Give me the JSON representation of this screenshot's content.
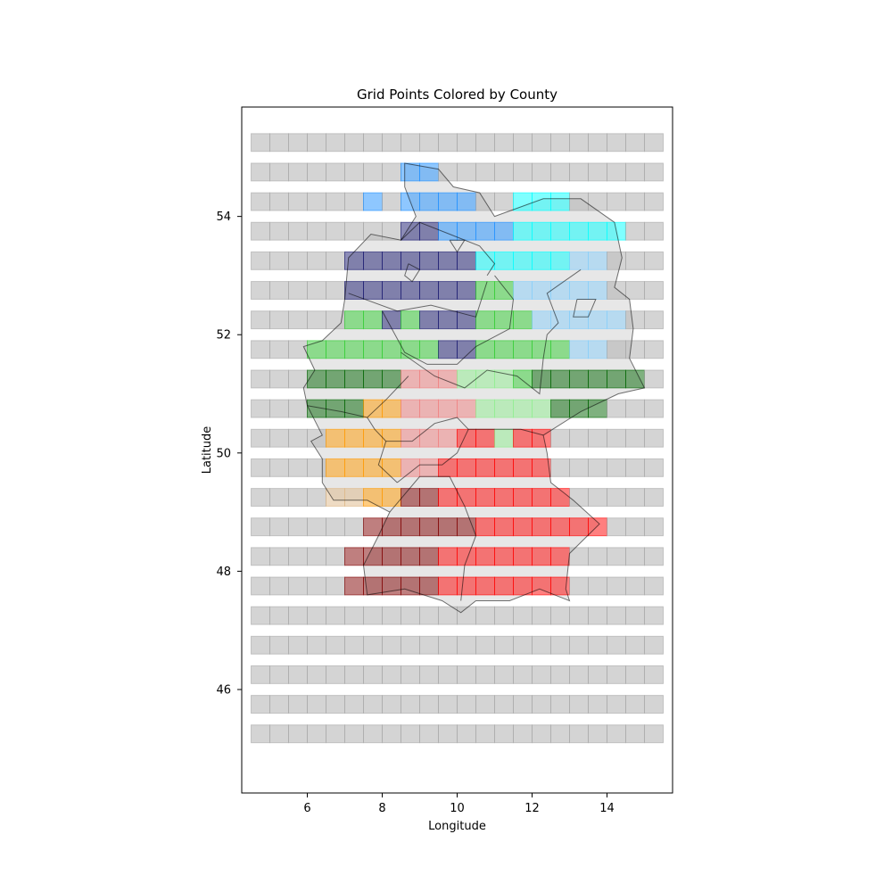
{
  "chart_data": {
    "type": "heatmap",
    "title": "Grid Points Colored by County",
    "xlabel": "Longitude",
    "ylabel": "Latitude",
    "xlim": [
      4.25,
      15.75
    ],
    "ylim": [
      44.25,
      55.85
    ],
    "xticks": [
      6,
      8,
      10,
      12,
      14
    ],
    "yticks": [
      46,
      48,
      50,
      52,
      54
    ],
    "grid": false,
    "cell_width_deg": 0.5,
    "cell_height_deg": 0.3,
    "lons": [
      4.75,
      5.25,
      5.75,
      6.25,
      6.75,
      7.25,
      7.75,
      8.25,
      8.75,
      9.25,
      9.75,
      10.25,
      10.75,
      11.25,
      11.75,
      12.25,
      12.75,
      13.25,
      13.75,
      14.25,
      14.75,
      15.25
    ],
    "lats": [
      45.25,
      45.75,
      46.25,
      46.75,
      47.25,
      47.75,
      48.25,
      48.75,
      49.25,
      49.75,
      50.25,
      50.75,
      51.25,
      51.75,
      52.25,
      52.75,
      53.25,
      53.75,
      54.25,
      54.75,
      55.25
    ],
    "default_color": "#a9a9a9",
    "county_colors": {
      "A": "#1e90ff",
      "B": "#00ffff",
      "C": "#191970",
      "D": "#87cefa",
      "E": "#32cd32",
      "F": "#006400",
      "G": "#90ee90",
      "H": "#f08080",
      "I": "#ff9900",
      "J": "#ff0000",
      "K": "#deb887",
      "L": "#800000"
    },
    "rows": [
      {
        "lat": 55.25,
        "cells": "......................"
      },
      {
        "lat": 54.75,
        "cells": "........AA............"
      },
      {
        "lat": 54.25,
        "cells": "......A.AAAA..BBB....."
      },
      {
        "lat": 53.75,
        "cells": "........CCAAAABBBBBB.."
      },
      {
        "lat": 53.25,
        "cells": ".....CCCCCCCBBBBBDD..."
      },
      {
        "lat": 52.75,
        "cells": ".....CCCCCCCEEDDDDD..."
      },
      {
        "lat": 52.25,
        "cells": ".....EECECCCEEEDDDDD.."
      },
      {
        "lat": 51.75,
        "cells": "...EEEEEEECCEEEEEDD..."
      },
      {
        "lat": 51.25,
        "cells": "...FFFFFHHHGGGEFFFFFF."
      },
      {
        "lat": 50.75,
        "cells": "...FFFIIHHHHGGGGFFF..."
      },
      {
        "lat": 50.25,
        "cells": "....IIIIHHHJJGJJ......"
      },
      {
        "lat": 49.75,
        "cells": "....IIIIHHJJJJJJ......"
      },
      {
        "lat": 49.25,
        "cells": "....KKIILLJJJJJJJ....."
      },
      {
        "lat": 48.75,
        "cells": "......LLLLLLJJJJJJJ..."
      },
      {
        "lat": 48.25,
        "cells": ".....LLLLLJJJJJJJ....."
      },
      {
        "lat": 47.75,
        "cells": ".....LLLLLJJJJJJJ....."
      },
      {
        "lat": 47.25,
        "cells": "......................"
      },
      {
        "lat": 46.75,
        "cells": "......................"
      },
      {
        "lat": 46.25,
        "cells": "......................"
      },
      {
        "lat": 45.75,
        "cells": "......................"
      },
      {
        "lat": 45.25,
        "cells": "......................"
      }
    ],
    "outline": {
      "stroke": "#000000",
      "fill": "#d3d3d3",
      "polygons": [
        {
          "fill": true,
          "points": [
            [
              8.6,
              54.9
            ],
            [
              9.5,
              54.8
            ],
            [
              9.9,
              54.5
            ],
            [
              10.6,
              54.4
            ],
            [
              11.0,
              54.0
            ],
            [
              12.3,
              54.3
            ],
            [
              13.3,
              54.3
            ],
            [
              14.2,
              53.9
            ],
            [
              14.4,
              53.3
            ],
            [
              14.2,
              52.8
            ],
            [
              14.6,
              52.6
            ],
            [
              14.7,
              52.1
            ],
            [
              14.6,
              51.6
            ],
            [
              15.0,
              51.1
            ],
            [
              14.3,
              51.0
            ],
            [
              13.3,
              50.7
            ],
            [
              12.3,
              50.3
            ],
            [
              12.4,
              50.0
            ],
            [
              12.5,
              49.5
            ],
            [
              13.1,
              49.2
            ],
            [
              13.8,
              48.8
            ],
            [
              13.0,
              48.3
            ],
            [
              12.9,
              47.7
            ],
            [
              13.0,
              47.5
            ],
            [
              12.2,
              47.7
            ],
            [
              11.4,
              47.5
            ],
            [
              10.5,
              47.5
            ],
            [
              10.1,
              47.3
            ],
            [
              9.6,
              47.5
            ],
            [
              8.6,
              47.7
            ],
            [
              7.6,
              47.6
            ],
            [
              7.5,
              48.1
            ],
            [
              7.9,
              48.6
            ],
            [
              8.2,
              49.0
            ],
            [
              7.6,
              49.2
            ],
            [
              6.7,
              49.2
            ],
            [
              6.4,
              49.5
            ],
            [
              6.4,
              49.9
            ],
            [
              6.1,
              50.2
            ],
            [
              6.4,
              50.3
            ],
            [
              6.0,
              50.8
            ],
            [
              5.9,
              51.1
            ],
            [
              6.2,
              51.4
            ],
            [
              5.9,
              51.8
            ],
            [
              6.4,
              51.9
            ],
            [
              6.9,
              52.2
            ],
            [
              7.0,
              52.6
            ],
            [
              7.1,
              53.3
            ],
            [
              7.7,
              53.7
            ],
            [
              8.5,
              53.6
            ],
            [
              8.9,
              54.0
            ],
            [
              8.6,
              54.5
            ],
            [
              8.6,
              54.9
            ]
          ]
        },
        {
          "fill": false,
          "points": [
            [
              8.5,
              53.6
            ],
            [
              9.0,
              53.9
            ],
            [
              9.8,
              53.7
            ],
            [
              10.6,
              53.5
            ],
            [
              11.0,
              53.2
            ],
            [
              10.8,
              53.0
            ]
          ]
        },
        {
          "fill": false,
          "points": [
            [
              7.1,
              52.7
            ],
            [
              8.4,
              52.4
            ],
            [
              9.3,
              52.5
            ],
            [
              10.5,
              52.3
            ],
            [
              10.8,
              52.9
            ]
          ]
        },
        {
          "fill": false,
          "points": [
            [
              8.0,
              52.4
            ],
            [
              8.6,
              51.7
            ],
            [
              9.2,
              51.5
            ],
            [
              10.0,
              51.5
            ],
            [
              10.5,
              51.8
            ],
            [
              11.4,
              52.1
            ],
            [
              11.5,
              52.6
            ],
            [
              11.0,
              53.0
            ]
          ]
        },
        {
          "fill": false,
          "points": [
            [
              8.5,
              51.7
            ],
            [
              9.4,
              51.3
            ],
            [
              10.2,
              51.1
            ],
            [
              10.8,
              51.4
            ],
            [
              11.6,
              51.3
            ],
            [
              12.2,
              51.0
            ],
            [
              12.3,
              51.6
            ],
            [
              12.4,
              52.0
            ],
            [
              12.7,
              52.2
            ],
            [
              12.4,
              52.7
            ],
            [
              13.3,
              53.1
            ]
          ]
        },
        {
          "fill": false,
          "points": [
            [
              6.0,
              50.8
            ],
            [
              6.9,
              50.7
            ],
            [
              7.6,
              50.6
            ],
            [
              8.1,
              50.9
            ],
            [
              8.7,
              51.3
            ]
          ]
        },
        {
          "fill": false,
          "points": [
            [
              7.6,
              50.6
            ],
            [
              7.8,
              50.4
            ],
            [
              8.1,
              50.2
            ],
            [
              7.9,
              49.8
            ],
            [
              8.4,
              49.5
            ]
          ]
        },
        {
          "fill": false,
          "points": [
            [
              8.1,
              50.2
            ],
            [
              8.8,
              50.2
            ],
            [
              9.4,
              50.5
            ],
            [
              10.0,
              50.6
            ],
            [
              10.3,
              50.4
            ],
            [
              11.0,
              50.4
            ],
            [
              11.7,
              50.4
            ],
            [
              12.3,
              50.3
            ]
          ]
        },
        {
          "fill": false,
          "points": [
            [
              8.4,
              49.5
            ],
            [
              9.0,
              49.8
            ],
            [
              9.6,
              49.8
            ],
            [
              10.0,
              50.0
            ],
            [
              10.3,
              50.4
            ]
          ]
        },
        {
          "fill": false,
          "points": [
            [
              8.2,
              49.0
            ],
            [
              9.0,
              49.6
            ],
            [
              9.8,
              49.6
            ],
            [
              10.2,
              49.1
            ],
            [
              10.5,
              48.6
            ],
            [
              10.2,
              48.1
            ],
            [
              10.1,
              47.5
            ]
          ]
        },
        {
          "fill": false,
          "points": [
            [
              13.2,
              52.6
            ],
            [
              13.7,
              52.6
            ],
            [
              13.5,
              52.3
            ],
            [
              13.1,
              52.3
            ],
            [
              13.2,
              52.6
            ]
          ]
        },
        {
          "fill": false,
          "points": [
            [
              8.7,
              53.2
            ],
            [
              9.0,
              53.1
            ],
            [
              8.8,
              52.9
            ],
            [
              8.6,
              53.0
            ],
            [
              8.7,
              53.2
            ]
          ]
        },
        {
          "fill": false,
          "points": [
            [
              9.8,
              53.6
            ],
            [
              10.2,
              53.6
            ],
            [
              10.0,
              53.4
            ],
            [
              9.8,
              53.6
            ]
          ]
        }
      ]
    }
  }
}
